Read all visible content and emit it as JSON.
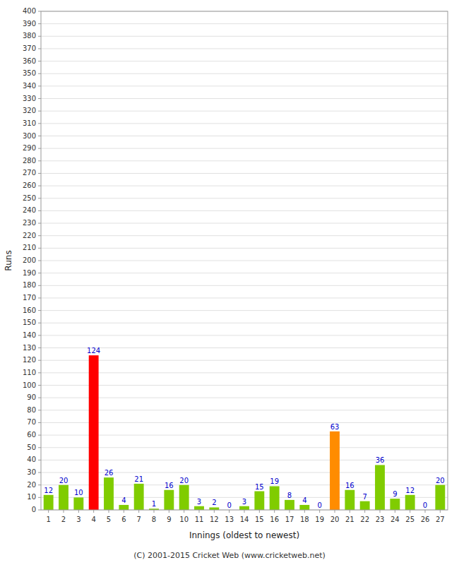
{
  "chart_data": {
    "type": "bar",
    "x_label": "Innings (oldest to newest)",
    "y_label": "Runs",
    "annotation": "(C) 2001-2015 Cricket Web (www.cricketweb.net)",
    "categories": [
      "1",
      "2",
      "3",
      "4",
      "5",
      "6",
      "7",
      "8",
      "9",
      "10",
      "11",
      "12",
      "13",
      "14",
      "15",
      "16",
      "17",
      "18",
      "19",
      "20",
      "21",
      "22",
      "23",
      "24",
      "25",
      "26",
      "27"
    ],
    "values": [
      12,
      20,
      10,
      124,
      26,
      4,
      21,
      1,
      16,
      20,
      3,
      2,
      0,
      3,
      15,
      19,
      8,
      4,
      0,
      63,
      16,
      7,
      36,
      9,
      12,
      0,
      20
    ],
    "colors": [
      "#80cc00",
      "#80cc00",
      "#80cc00",
      "#ff0000",
      "#80cc00",
      "#80cc00",
      "#80cc00",
      "#80cc00",
      "#80cc00",
      "#80cc00",
      "#80cc00",
      "#80cc00",
      "#80cc00",
      "#80cc00",
      "#80cc00",
      "#80cc00",
      "#80cc00",
      "#80cc00",
      "#80cc00",
      "#ff8c00",
      "#80cc00",
      "#80cc00",
      "#80cc00",
      "#80cc00",
      "#80cc00",
      "#80cc00",
      "#80cc00"
    ],
    "ylim": [
      0,
      400
    ],
    "yticks": [
      0,
      10,
      20,
      30,
      40,
      50,
      60,
      70,
      80,
      90,
      100,
      110,
      120,
      130,
      140,
      150,
      160,
      170,
      180,
      190,
      200,
      210,
      220,
      230,
      240,
      250,
      260,
      270,
      280,
      290,
      300,
      310,
      320,
      330,
      340,
      350,
      360,
      370,
      380,
      390,
      400
    ],
    "grid": true,
    "data_labels": true
  }
}
